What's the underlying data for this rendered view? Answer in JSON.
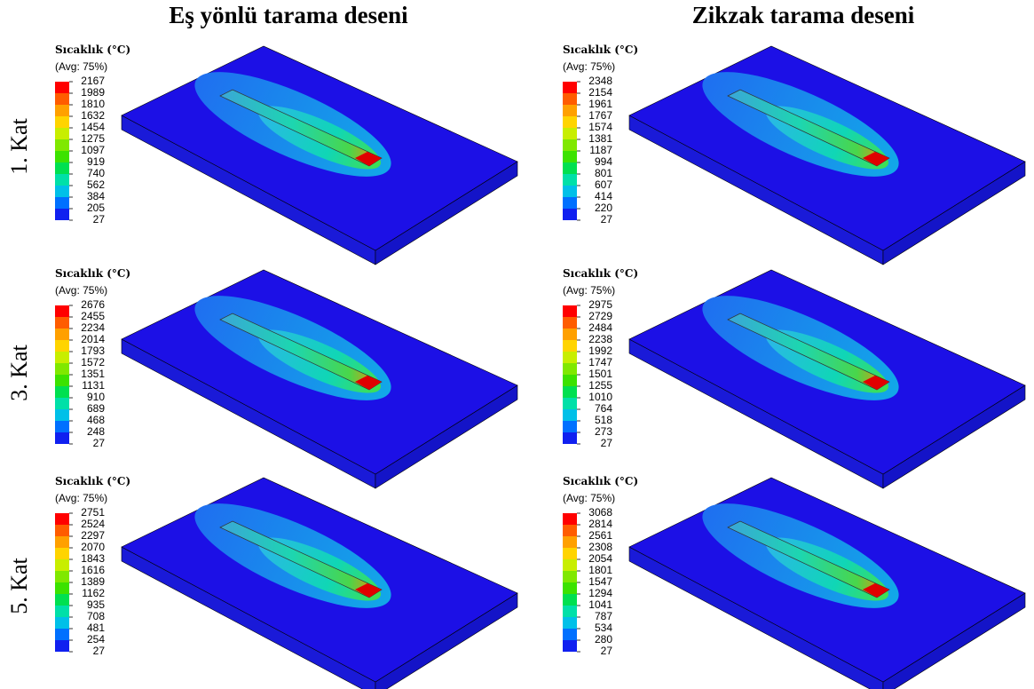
{
  "columns": [
    "Eş yönlü tarama deseni",
    "Zikzak tarama deseni"
  ],
  "rows": [
    "1. Kat",
    "3. Kat",
    "5. Kat"
  ],
  "panels": [
    {
      "legend_title": "Sıcaklık (°C)",
      "avg": "(Avg: 75%)",
      "values": [
        2167,
        1989,
        1810,
        1632,
        1454,
        1275,
        1097,
        919,
        740,
        562,
        384,
        205,
        27
      ]
    },
    {
      "legend_title": "Sıcaklık (°C)",
      "avg": "(Avg: 75%)",
      "values": [
        2348,
        2154,
        1961,
        1767,
        1574,
        1381,
        1187,
        994,
        801,
        607,
        414,
        220,
        27
      ]
    },
    {
      "legend_title": "Sıcaklık (°C)",
      "avg": "(Avg: 75%)",
      "values": [
        2676,
        2455,
        2234,
        2014,
        1793,
        1572,
        1351,
        1131,
        910,
        689,
        468,
        248,
        27
      ]
    },
    {
      "legend_title": "Sıcaklık (°C)",
      "avg": "(Avg: 75%)",
      "values": [
        2975,
        2729,
        2484,
        2238,
        1992,
        1747,
        1501,
        1255,
        1010,
        764,
        518,
        273,
        27
      ]
    },
    {
      "legend_title": "Sıcaklık (°C)",
      "avg": "(Avg: 75%)",
      "values": [
        2751,
        2524,
        2297,
        2070,
        1843,
        1616,
        1389,
        1162,
        935,
        708,
        481,
        254,
        27
      ]
    },
    {
      "legend_title": "Sıcaklık (°C)",
      "avg": "(Avg: 75%)",
      "values": [
        3068,
        2814,
        2561,
        2308,
        2054,
        1801,
        1547,
        1294,
        1041,
        787,
        534,
        280,
        27
      ]
    }
  ]
}
